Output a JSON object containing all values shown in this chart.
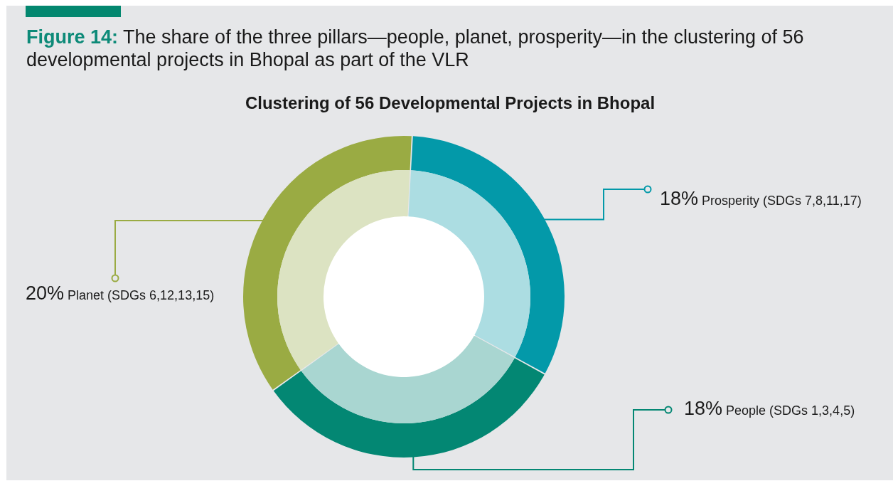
{
  "chart_data": {
    "type": "donut",
    "title": "Figure 14: The share of the three pillars—people, planet, prosperity—in the clustering of 56 developmental projects in Bhopal as part of the VLR",
    "subtitle": "Clustering of 56 Developmental Projects in Bhopal",
    "categories": [
      "Prosperity (SDGs 7,8,11,17)",
      "People (SDGs 1,3,4,5)",
      "Planet (SDGs 6,12,13,15)"
    ],
    "series": [
      {
        "values": [
          18,
          18,
          20
        ],
        "colors": [
          "#0399a9",
          "#038773",
          "#9aab43"
        ],
        "value_labels": [
          "18%",
          "18%",
          "20%"
        ]
      },
      {
        "values": [
          32.1,
          32.1,
          35.7
        ],
        "colors": [
          "#acdde2",
          "#a9d6d1",
          "#dce3c2"
        ]
      }
    ]
  }
}
